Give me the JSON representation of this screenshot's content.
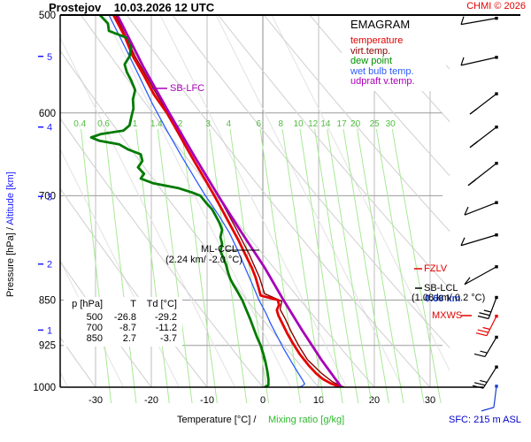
{
  "header": {
    "station": "Prostejov",
    "datetime": "10.03.2026 12 UTC",
    "copyright": "CHMI © 2026"
  },
  "legend": {
    "title": "EMAGRAM",
    "items": [
      {
        "id": "temperature",
        "label": "temperature",
        "color": "#e60000"
      },
      {
        "id": "virt-temp",
        "label": "virt.temp.",
        "color": "#8b0000"
      },
      {
        "id": "dew-point",
        "label": "dew point",
        "color": "#009000"
      },
      {
        "id": "wet-bulb",
        "label": "wet bulb temp.",
        "color": "#2b5cff"
      },
      {
        "id": "updraft-vtemp",
        "label": "udpraft v.temp.",
        "color": "#a800b8"
      }
    ]
  },
  "axes": {
    "y_label_black": "Pressure [hPa]",
    "y_label_sep": "  /  ",
    "y_label_blue": "Altitude [km]",
    "x_label_black": "Temperature [°C]  /",
    "x_label_green": "Mixing ratio [g/kg]",
    "pressure_ticks": [
      500,
      600,
      700,
      850,
      925,
      1000
    ],
    "altitude_ticks": [
      {
        "km": 5,
        "p": 540
      },
      {
        "km": 4,
        "p": 616
      },
      {
        "km": 3,
        "p": 701
      },
      {
        "km": 2,
        "p": 795
      },
      {
        "km": 1,
        "p": 899
      }
    ],
    "temp_ticks": [
      -30,
      -20,
      -10,
      0,
      10,
      20,
      30
    ]
  },
  "mixing_ratio_values": [
    0.4,
    0.6,
    1,
    1.4,
    2,
    3,
    4,
    6,
    8,
    10,
    12,
    14,
    17,
    20,
    25,
    30
  ],
  "table": {
    "headers": [
      "p [hPa]",
      "T",
      "Td [°C]"
    ],
    "rows": [
      [
        "500",
        "-26.8",
        "-29.2"
      ],
      [
        "700",
        "-8.7",
        "-11.2"
      ],
      [
        "850",
        "2.7",
        "-3.7"
      ]
    ]
  },
  "annotations": {
    "sb_lfc": "SB-LFC",
    "ml_ccl": "ML-CCL",
    "ml_ccl_detail": "(2.24 km/ -2.0 °C)",
    "fzlv": "FZLV",
    "sb_lcl": "SB-LCL",
    "sb_lcl_detail": "(1.08 km/ 0.2 °C)",
    "sb_lcl_blue": "0.68 km",
    "mxws": "MXWS",
    "sfc": "SFC: 215 m ASL"
  },
  "colors": {
    "grid": "#bdbdbd",
    "grid_zero": "#8c8c8c",
    "pressure_grid": "#9a9a9a",
    "adiabat": "#cfcfcf",
    "moist": "#e2e2e2",
    "mixing_line": "#a9e896",
    "mixing_label": "#4fbe3c",
    "axis_blue": "#1a1aff",
    "barb": "#000000"
  },
  "chart_data": {
    "type": "line",
    "title": "EMAGRAM sounding Prostejov 10.03.2026 12 UTC",
    "x_axis": {
      "label": "Temperature [°C]",
      "ticks": [
        -30,
        -20,
        -10,
        0,
        10,
        20,
        30
      ],
      "range": [
        -36,
        33
      ]
    },
    "y_axis": {
      "label": "Pressure [hPa]",
      "ticks": [
        500,
        600,
        700,
        850,
        925,
        1000
      ],
      "scale": "log",
      "range": [
        500,
        1000
      ]
    },
    "grid": true,
    "legend_position": "top-right",
    "series": [
      {
        "id": "wet-bulb",
        "name": "wet bulb temp.",
        "color": "#2b5cff",
        "width": 1.3,
        "points": [
          [
            500,
            -27.6
          ],
          [
            530,
            -24.8
          ],
          [
            560,
            -22.2
          ],
          [
            590,
            -19.8
          ],
          [
            620,
            -17.2
          ],
          [
            650,
            -14.6
          ],
          [
            680,
            -12.0
          ],
          [
            700,
            -10.3
          ],
          [
            725,
            -8.0
          ],
          [
            750,
            -6.0
          ],
          [
            775,
            -4.5
          ],
          [
            800,
            -3.2
          ],
          [
            825,
            -1.9
          ],
          [
            850,
            -0.7
          ],
          [
            870,
            0.5
          ],
          [
            890,
            1.5
          ],
          [
            910,
            2.6
          ],
          [
            930,
            3.7
          ],
          [
            950,
            4.9
          ],
          [
            965,
            5.8
          ],
          [
            978,
            6.6
          ],
          [
            988,
            7.2
          ],
          [
            994,
            7.5
          ],
          [
            998,
            7.0
          ],
          [
            1000,
            6.3
          ]
        ]
      },
      {
        "id": "virt-temp",
        "name": "virt.temp.",
        "color": "#8b0000",
        "width": 1.4,
        "points": [
          [
            500,
            -26.4
          ],
          [
            540,
            -22.9
          ],
          [
            580,
            -19.0
          ],
          [
            620,
            -14.9
          ],
          [
            660,
            -11.4
          ],
          [
            700,
            -8.0
          ],
          [
            740,
            -5.1
          ],
          [
            780,
            -2.5
          ],
          [
            815,
            -0.6
          ],
          [
            840,
            0.3
          ],
          [
            852,
            3.4
          ],
          [
            865,
            3.1
          ],
          [
            880,
            4.0
          ],
          [
            900,
            5.0
          ],
          [
            925,
            6.4
          ],
          [
            950,
            8.0
          ],
          [
            975,
            10.6
          ],
          [
            990,
            12.5
          ],
          [
            1000,
            14.6
          ]
        ]
      },
      {
        "id": "temperature",
        "name": "temperature",
        "color": "#e60000",
        "width": 2.8,
        "points": [
          [
            500,
            -26.8
          ],
          [
            520,
            -24.8
          ],
          [
            540,
            -23.3
          ],
          [
            560,
            -21.3
          ],
          [
            580,
            -19.5
          ],
          [
            600,
            -17.2
          ],
          [
            620,
            -15.4
          ],
          [
            640,
            -13.7
          ],
          [
            660,
            -12.0
          ],
          [
            680,
            -10.3
          ],
          [
            700,
            -8.7
          ],
          [
            720,
            -7.2
          ],
          [
            740,
            -5.8
          ],
          [
            760,
            -4.4
          ],
          [
            780,
            -3.2
          ],
          [
            800,
            -2.0
          ],
          [
            815,
            -1.3
          ],
          [
            830,
            -0.8
          ],
          [
            843,
            -0.4
          ],
          [
            850,
            2.7
          ],
          [
            858,
            2.9
          ],
          [
            866,
            2.5
          ],
          [
            875,
            2.8
          ],
          [
            890,
            3.6
          ],
          [
            905,
            4.4
          ],
          [
            920,
            5.3
          ],
          [
            940,
            6.6
          ],
          [
            960,
            8.2
          ],
          [
            975,
            9.6
          ],
          [
            985,
            10.8
          ],
          [
            993,
            12.2
          ],
          [
            998,
            13.5
          ],
          [
            1000,
            13.8
          ]
        ]
      },
      {
        "id": "dew-point",
        "name": "dew point",
        "color": "#007a00",
        "width": 2.8,
        "points": [
          [
            500,
            -29.2
          ],
          [
            508,
            -27.8
          ],
          [
            515,
            -27.6
          ],
          [
            522,
            -24.2
          ],
          [
            530,
            -23.6
          ],
          [
            540,
            -23.9
          ],
          [
            548,
            -24.8
          ],
          [
            556,
            -24.4
          ],
          [
            565,
            -23.6
          ],
          [
            575,
            -22.9
          ],
          [
            585,
            -23.3
          ],
          [
            595,
            -23.2
          ],
          [
            605,
            -23.6
          ],
          [
            614,
            -23.9
          ],
          [
            620,
            -25.0
          ],
          [
            624,
            -29.0
          ],
          [
            628,
            -30.8
          ],
          [
            632,
            -29.3
          ],
          [
            636,
            -25.8
          ],
          [
            642,
            -24.2
          ],
          [
            648,
            -21.9
          ],
          [
            656,
            -21.6
          ],
          [
            664,
            -22.4
          ],
          [
            672,
            -21.3
          ],
          [
            678,
            -21.9
          ],
          [
            684,
            -19.6
          ],
          [
            690,
            -15.2
          ],
          [
            696,
            -12.6
          ],
          [
            700,
            -11.2
          ],
          [
            710,
            -10.1
          ],
          [
            718,
            -9.1
          ],
          [
            726,
            -8.5
          ],
          [
            736,
            -7.8
          ],
          [
            746,
            -7.3
          ],
          [
            756,
            -7.6
          ],
          [
            766,
            -7.3
          ],
          [
            776,
            -7.6
          ],
          [
            786,
            -7.1
          ],
          [
            796,
            -6.6
          ],
          [
            806,
            -6.3
          ],
          [
            816,
            -5.9
          ],
          [
            826,
            -5.3
          ],
          [
            836,
            -4.6
          ],
          [
            850,
            -3.7
          ],
          [
            865,
            -3.0
          ],
          [
            880,
            -2.3
          ],
          [
            895,
            -1.7
          ],
          [
            910,
            -1.1
          ],
          [
            925,
            -0.4
          ],
          [
            940,
            0.1
          ],
          [
            955,
            0.5
          ],
          [
            970,
            0.8
          ],
          [
            985,
            1.0
          ],
          [
            996,
            1.0
          ],
          [
            1000,
            0.3
          ]
        ]
      },
      {
        "id": "updraft-vtemp",
        "name": "udpraft v.temp.",
        "color": "#a800b8",
        "width": 2.8,
        "points": [
          [
            500,
            -26.1
          ],
          [
            550,
            -21.5
          ],
          [
            600,
            -16.8
          ],
          [
            650,
            -12.3
          ],
          [
            700,
            -8.0
          ],
          [
            750,
            -3.8
          ],
          [
            800,
            0.3
          ],
          [
            850,
            3.7
          ],
          [
            900,
            7.1
          ],
          [
            950,
            10.5
          ],
          [
            1000,
            14.1
          ]
        ]
      }
    ],
    "wind_barbs": [
      {
        "p": 503,
        "sx": -40,
        "sy": 7,
        "f": [
          [
            3,
            -9,
            0
          ]
        ]
      },
      {
        "p": 541,
        "sx": -40,
        "sy": 9,
        "f": [
          [
            3,
            -9,
            0
          ]
        ]
      },
      {
        "p": 579,
        "sx": -30,
        "sy": 23,
        "f": [
          [
            8,
            -6,
            0
          ]
        ]
      },
      {
        "p": 616,
        "sx": -30,
        "sy": 23,
        "f": [
          [
            8,
            -6,
            0
          ],
          [
            5,
            -4,
            5
          ]
        ]
      },
      {
        "p": 659,
        "sx": -32,
        "sy": 25,
        "f": [
          [
            8,
            -6,
            0
          ],
          [
            5,
            -4,
            6
          ]
        ]
      },
      {
        "p": 709,
        "sx": -36,
        "sy": 14,
        "f": [
          [
            4,
            -9,
            0
          ]
        ]
      },
      {
        "p": 753,
        "sx": -40,
        "sy": 12,
        "f": [
          [
            4,
            -9,
            0
          ]
        ]
      },
      {
        "p": 799,
        "sx": -36,
        "sy": 20,
        "f": [
          [
            6,
            -8,
            0
          ]
        ]
      },
      {
        "p": 846,
        "sx": -9,
        "sy": 24,
        "f": [
          [
            -12,
            -3,
            0
          ],
          [
            -12,
            -3,
            4
          ],
          [
            -8,
            -2,
            8
          ]
        ]
      },
      {
        "p": 876,
        "color": "#e60000",
        "sx": -11,
        "sy": 22,
        "f": [
          [
            -12,
            -3,
            0
          ],
          [
            -12,
            -3,
            4
          ],
          [
            -8,
            -2,
            8
          ]
        ]
      },
      {
        "p": 911,
        "sx": -13,
        "sy": 22,
        "f": [
          [
            -12,
            -3,
            0
          ],
          [
            -8,
            -2,
            5
          ]
        ]
      },
      {
        "p": 963,
        "sx": -15,
        "sy": 24,
        "f": [
          [
            -12,
            -3,
            0
          ],
          [
            -12,
            -3,
            4
          ],
          [
            -8,
            -2,
            8
          ]
        ]
      },
      {
        "p": 998,
        "color": "#1a3fd4",
        "sx": -3,
        "sy": 24,
        "f": [
          [
            -14,
            4,
            0
          ]
        ]
      }
    ]
  }
}
